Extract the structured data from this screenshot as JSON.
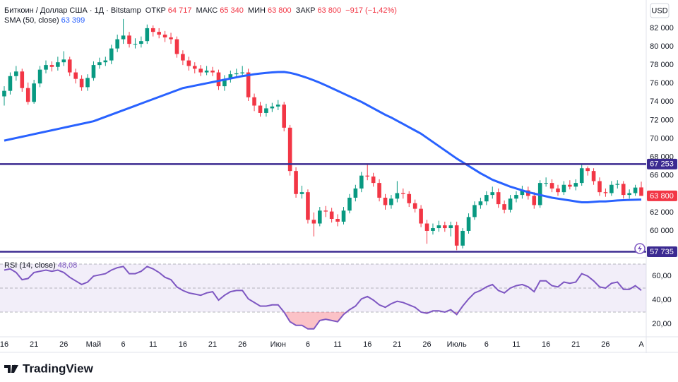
{
  "chart_data": {
    "type": "candlestick",
    "title": "Биткоин / Доллар США · 1Д · Bitstamp",
    "ohlc_legend": [
      {
        "name": "ОТКР",
        "value": 64717,
        "label": "64 717"
      },
      {
        "name": "МАКС",
        "value": 65340,
        "label": "65 340"
      },
      {
        "name": "МИН",
        "value": 63800,
        "label": "63 800"
      },
      {
        "name": "ЗАКР",
        "value": 63800,
        "label": "63 800"
      }
    ],
    "change": {
      "value": -917,
      "label": "−917 (−1,42%)"
    },
    "currency": "USD",
    "brand": "TradingView",
    "up_color": "#089981",
    "down_color": "#f23645",
    "ylim": [
      57200,
      84600
    ],
    "yticks": [
      {
        "value": 60000,
        "label": "60 000"
      },
      {
        "value": 62000,
        "label": "62 000"
      },
      {
        "value": 64000,
        "label": "64 000"
      },
      {
        "value": 66000,
        "label": "66 000"
      },
      {
        "value": 68000,
        "label": "68 000"
      },
      {
        "value": 70000,
        "label": "70 000"
      },
      {
        "value": 72000,
        "label": "72 000"
      },
      {
        "value": 74000,
        "label": "74 000"
      },
      {
        "value": 76000,
        "label": "76 000"
      },
      {
        "value": 78000,
        "label": "78 000"
      },
      {
        "value": 80000,
        "label": "80 000"
      },
      {
        "value": 82000,
        "label": "82 000"
      }
    ],
    "xticks": [
      {
        "value": 0,
        "label": "16"
      },
      {
        "value": 5,
        "label": "21"
      },
      {
        "value": 10,
        "label": "26"
      },
      {
        "value": 15,
        "label": "Май"
      },
      {
        "value": 20,
        "label": "6"
      },
      {
        "value": 25,
        "label": "11"
      },
      {
        "value": 30,
        "label": "16"
      },
      {
        "value": 35,
        "label": "21"
      },
      {
        "value": 40,
        "label": "26"
      },
      {
        "value": 46,
        "label": "Июн"
      },
      {
        "value": 51,
        "label": "6"
      },
      {
        "value": 56,
        "label": "11"
      },
      {
        "value": 61,
        "label": "16"
      },
      {
        "value": 66,
        "label": "21"
      },
      {
        "value": 71,
        "label": "26"
      },
      {
        "value": 76,
        "label": "Июль"
      },
      {
        "value": 81,
        "label": "6"
      },
      {
        "value": 86,
        "label": "11"
      },
      {
        "value": 91,
        "label": "16"
      },
      {
        "value": 96,
        "label": "21"
      },
      {
        "value": 101,
        "label": "26"
      },
      {
        "value": 107,
        "label": "А"
      }
    ],
    "levels": [
      {
        "value": 67253,
        "label": "67 253",
        "color": "#3b2a91"
      },
      {
        "value": 57735,
        "label": "57 735",
        "color": "#3b2a91"
      }
    ],
    "last_price": {
      "value": 63800,
      "label": "63 800"
    },
    "candles": [
      [
        74600,
        75700,
        73600,
        75200
      ],
      [
        75200,
        77200,
        74800,
        76800
      ],
      [
        76800,
        77900,
        76300,
        77300
      ],
      [
        77300,
        77600,
        75100,
        75500
      ],
      [
        75500,
        76100,
        73700,
        74000
      ],
      [
        74000,
        76400,
        73800,
        76000
      ],
      [
        76000,
        77900,
        75600,
        77500
      ],
      [
        77500,
        78500,
        77100,
        78000
      ],
      [
        78000,
        78400,
        77300,
        77800
      ],
      [
        77800,
        78900,
        77400,
        78300
      ],
      [
        78300,
        79500,
        77900,
        78600
      ],
      [
        78600,
        78900,
        76800,
        77200
      ],
      [
        77200,
        77600,
        76000,
        76500
      ],
      [
        76500,
        76900,
        75200,
        75600
      ],
      [
        75600,
        77000,
        75200,
        76600
      ],
      [
        76600,
        78400,
        76300,
        78000
      ],
      [
        78000,
        78800,
        77600,
        78300
      ],
      [
        78300,
        78900,
        77900,
        78500
      ],
      [
        78500,
        80200,
        78100,
        79800
      ],
      [
        79800,
        81300,
        79400,
        80800
      ],
      [
        80800,
        83000,
        80300,
        81200
      ],
      [
        81200,
        81600,
        79900,
        80300
      ],
      [
        80300,
        80900,
        79800,
        80300
      ],
      [
        80300,
        81100,
        79900,
        80600
      ],
      [
        80600,
        82400,
        80300,
        82000
      ],
      [
        82000,
        82300,
        81100,
        81600
      ],
      [
        81600,
        82000,
        80900,
        81300
      ],
      [
        81300,
        81700,
        80500,
        81000
      ],
      [
        81000,
        81500,
        80300,
        80800
      ],
      [
        80800,
        81100,
        78800,
        79200
      ],
      [
        79200,
        79600,
        78000,
        78500
      ],
      [
        78500,
        78900,
        77400,
        77900
      ],
      [
        77900,
        78300,
        77100,
        77600
      ],
      [
        77600,
        78000,
        76800,
        77200
      ],
      [
        77200,
        77900,
        76900,
        77400
      ],
      [
        77400,
        77800,
        76800,
        77200
      ],
      [
        77200,
        77500,
        75300,
        75700
      ],
      [
        75700,
        76900,
        75200,
        76500
      ],
      [
        76500,
        77400,
        76100,
        77000
      ],
      [
        77000,
        77600,
        76600,
        77100
      ],
      [
        77100,
        77900,
        76700,
        77200
      ],
      [
        77200,
        77600,
        74100,
        74500
      ],
      [
        74500,
        74900,
        73000,
        73600
      ],
      [
        73600,
        74000,
        72400,
        72800
      ],
      [
        72800,
        73800,
        72400,
        73300
      ],
      [
        73300,
        73900,
        72900,
        73500
      ],
      [
        73500,
        74200,
        73100,
        73700
      ],
      [
        73700,
        74000,
        70800,
        71200
      ],
      [
        71200,
        71500,
        66000,
        66500
      ],
      [
        66500,
        66900,
        63600,
        64000
      ],
      [
        64000,
        64900,
        63500,
        64200
      ],
      [
        64200,
        64500,
        60800,
        61200
      ],
      [
        61200,
        62000,
        59400,
        60800
      ],
      [
        60800,
        62600,
        60500,
        62200
      ],
      [
        62200,
        62700,
        61500,
        62100
      ],
      [
        62100,
        62500,
        60900,
        61300
      ],
      [
        61300,
        61800,
        60500,
        61000
      ],
      [
        61000,
        62600,
        60700,
        62200
      ],
      [
        62200,
        64000,
        61900,
        63600
      ],
      [
        63600,
        65000,
        63200,
        64600
      ],
      [
        64600,
        66400,
        64200,
        66000
      ],
      [
        66000,
        67300,
        65500,
        65900
      ],
      [
        65900,
        66300,
        64800,
        65200
      ],
      [
        65200,
        65600,
        63200,
        63600
      ],
      [
        63600,
        64000,
        62300,
        62800
      ],
      [
        62800,
        63900,
        62400,
        63500
      ],
      [
        63500,
        65400,
        63100,
        64100
      ],
      [
        64100,
        64600,
        63500,
        64000
      ],
      [
        64000,
        64300,
        62600,
        63000
      ],
      [
        63000,
        63400,
        62000,
        62400
      ],
      [
        62400,
        62800,
        60400,
        60800
      ],
      [
        60800,
        61200,
        58600,
        60000
      ],
      [
        60000,
        60800,
        59600,
        60300
      ],
      [
        60300,
        61100,
        59900,
        60600
      ],
      [
        60600,
        61000,
        59900,
        60300
      ],
      [
        60300,
        61000,
        59400,
        60600
      ],
      [
        60600,
        61000,
        57900,
        58400
      ],
      [
        58400,
        60300,
        58100,
        60000
      ],
      [
        60000,
        61900,
        59700,
        61500
      ],
      [
        61500,
        63200,
        61200,
        62800
      ],
      [
        62800,
        63600,
        62400,
        63200
      ],
      [
        63200,
        64300,
        62800,
        63900
      ],
      [
        63900,
        64800,
        63500,
        64200
      ],
      [
        64200,
        64600,
        62500,
        62900
      ],
      [
        62900,
        63300,
        61900,
        62300
      ],
      [
        62300,
        63900,
        62000,
        63500
      ],
      [
        63500,
        64300,
        63100,
        63900
      ],
      [
        63900,
        64900,
        63500,
        64400
      ],
      [
        64400,
        64800,
        63400,
        63800
      ],
      [
        63800,
        64200,
        62400,
        62800
      ],
      [
        62800,
        65500,
        62500,
        65200
      ],
      [
        65200,
        65800,
        64800,
        65200
      ],
      [
        65200,
        65600,
        64200,
        64600
      ],
      [
        64600,
        65000,
        63800,
        64200
      ],
      [
        64200,
        65400,
        63900,
        65000
      ],
      [
        65000,
        65500,
        64500,
        64800
      ],
      [
        64800,
        65600,
        64400,
        65200
      ],
      [
        65200,
        67200,
        64900,
        66800
      ],
      [
        66800,
        67000,
        66000,
        66500
      ],
      [
        66500,
        66800,
        65000,
        65400
      ],
      [
        65400,
        65800,
        63800,
        64200
      ],
      [
        64200,
        64600,
        63700,
        64100
      ],
      [
        64100,
        65400,
        63800,
        65000
      ],
      [
        65000,
        65500,
        64600,
        65100
      ],
      [
        65100,
        65400,
        63500,
        63900
      ],
      [
        63900,
        64500,
        63500,
        64100
      ],
      [
        64100,
        65000,
        63800,
        64700
      ],
      [
        64717,
        65340,
        63800,
        63800
      ]
    ],
    "sma": {
      "name": "SMA (50, close)",
      "last_label": "63 399",
      "color": "#2962ff",
      "values": [
        69800,
        69940,
        70080,
        70220,
        70360,
        70500,
        70640,
        70780,
        70920,
        71060,
        71200,
        71340,
        71480,
        71620,
        71760,
        71900,
        72140,
        72380,
        72620,
        72860,
        73100,
        73340,
        73580,
        73820,
        74060,
        74300,
        74540,
        74780,
        75020,
        75260,
        75500,
        75630,
        75760,
        75890,
        76020,
        76150,
        76280,
        76410,
        76540,
        76670,
        76800,
        76900,
        77000,
        77080,
        77150,
        77200,
        77240,
        77250,
        77150,
        77000,
        76800,
        76580,
        76340,
        76080,
        75800,
        75500,
        75200,
        74900,
        74600,
        74300,
        74000,
        73650,
        73300,
        72950,
        72600,
        72300,
        71950,
        71600,
        71250,
        70900,
        70550,
        70100,
        69650,
        69200,
        68750,
        68300,
        67850,
        67450,
        67050,
        66650,
        66250,
        65900,
        65550,
        65300,
        65050,
        64800,
        64600,
        64400,
        64200,
        64050,
        63900,
        63750,
        63600,
        63500,
        63400,
        63300,
        63200,
        63100,
        63100,
        63150,
        63200,
        63200,
        63250,
        63300,
        63330,
        63360,
        63380,
        63399
      ]
    },
    "rsi": {
      "name": "RSI (14, close)",
      "last_label": "48,08",
      "color": "#7e57c2",
      "oversold_color": "#f23645",
      "ylim": [
        10,
        75
      ],
      "yticks": [
        {
          "value": 20,
          "label": "20,00"
        },
        {
          "value": 40,
          "label": "40,00"
        },
        {
          "value": 60,
          "label": "60,00"
        }
      ],
      "bands": [
        30,
        50,
        70
      ],
      "values": [
        65,
        66,
        63,
        57,
        58,
        63,
        64,
        65,
        64,
        65,
        63,
        59,
        56,
        53,
        55,
        60,
        61,
        62,
        65,
        67,
        68,
        62,
        62,
        64,
        68,
        66,
        63,
        59,
        57,
        51,
        48,
        46,
        45,
        44,
        46,
        47,
        40,
        44,
        47,
        48,
        48,
        41,
        38,
        35,
        35,
        36,
        36,
        30,
        22,
        19,
        19,
        16,
        16,
        23,
        24,
        23,
        22,
        28,
        32,
        35,
        41,
        43,
        40,
        36,
        34,
        37,
        39,
        38,
        36,
        34,
        30,
        29,
        31,
        31,
        30,
        32,
        28,
        35,
        41,
        46,
        48,
        51,
        53,
        48,
        46,
        50,
        52,
        53,
        51,
        47,
        56,
        56,
        52,
        51,
        55,
        54,
        55,
        62,
        60,
        56,
        51,
        50,
        54,
        55,
        49,
        49,
        52,
        48.08
      ]
    }
  }
}
